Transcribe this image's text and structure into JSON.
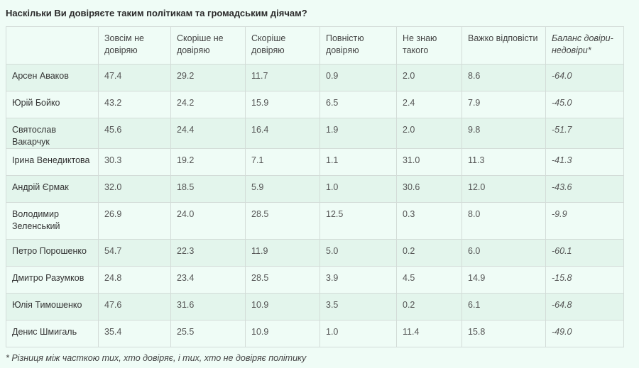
{
  "title": "Наскільки Ви довіряєте таким політикам та громадським діячам?",
  "columns": [
    "",
    "Зовсім не довіряю",
    "Скоріше не довіряю",
    "Скоріше довіряю",
    "Повністю довіряю",
    "Не знаю такого",
    "Важко відповісти",
    "Баланс довіри-недовіри*"
  ],
  "rows": [
    [
      "Арсен Аваков",
      "47.4",
      "29.2",
      "11.7",
      "0.9",
      "2.0",
      "8.6",
      "-64.0"
    ],
    [
      "Юрій Бойко",
      "43.2",
      "24.2",
      "15.9",
      "6.5",
      "2.4",
      "7.9",
      "-45.0"
    ],
    [
      "Святослав Вакарчук",
      "45.6",
      "24.4",
      "16.4",
      "1.9",
      "2.0",
      "9.8",
      "-51.7"
    ],
    [
      "Ірина Венедиктова",
      "30.3",
      "19.2",
      "7.1",
      "1.1",
      "31.0",
      "11.3",
      "-41.3"
    ],
    [
      "Андрій Єрмак",
      "32.0",
      "18.5",
      "5.9",
      "1.0",
      "30.6",
      "12.0",
      "-43.6"
    ],
    [
      "Володимир Зеленський",
      "26.9",
      "24.0",
      "28.5",
      "12.5",
      "0.3",
      "8.0",
      "-9.9"
    ],
    [
      "Петро Порошенко",
      "54.7",
      "22.3",
      "11.9",
      "5.0",
      "0.2",
      "6.0",
      "-60.1"
    ],
    [
      "Дмитро Разумков",
      "24.8",
      "23.4",
      "28.5",
      "3.9",
      "4.5",
      "14.9",
      "-15.8"
    ],
    [
      "Юлія Тимошенко",
      "47.6",
      "31.6",
      "10.9",
      "3.5",
      "0.2",
      "6.1",
      "-64.8"
    ],
    [
      "Денис Шмигаль",
      "35.4",
      "25.5",
      "10.9",
      "1.0",
      "11.4",
      "15.8",
      "-49.0"
    ]
  ],
  "footnote": "* Різниця між часткою тих, хто довіряє, і тих, хто не довіряє політику"
}
